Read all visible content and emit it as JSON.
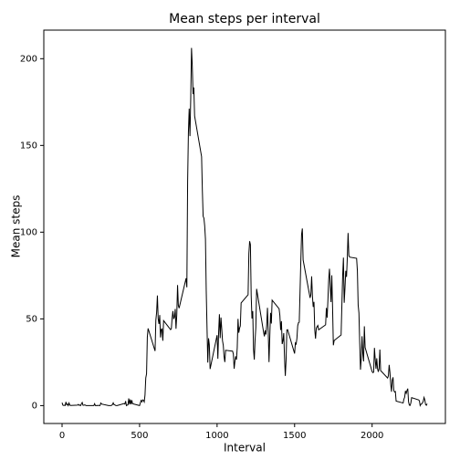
{
  "chart_data": {
    "type": "line",
    "title": "Mean steps per interval",
    "x_label": "Interval",
    "y_label": "Mean steps",
    "x": [
      0,
      5,
      10,
      15,
      20,
      25,
      30,
      35,
      40,
      45,
      50,
      55,
      100,
      105,
      110,
      115,
      120,
      125,
      130,
      135,
      140,
      145,
      150,
      155,
      200,
      205,
      210,
      215,
      220,
      225,
      230,
      235,
      240,
      245,
      250,
      255,
      300,
      305,
      310,
      315,
      320,
      325,
      330,
      335,
      340,
      345,
      350,
      355,
      400,
      405,
      410,
      415,
      420,
      425,
      430,
      435,
      440,
      445,
      450,
      455,
      500,
      505,
      510,
      515,
      520,
      525,
      530,
      535,
      540,
      545,
      550,
      555,
      600,
      605,
      610,
      615,
      620,
      625,
      630,
      635,
      640,
      645,
      650,
      655,
      700,
      705,
      710,
      715,
      720,
      725,
      730,
      735,
      740,
      745,
      750,
      755,
      800,
      805,
      810,
      815,
      820,
      825,
      830,
      835,
      840,
      845,
      850,
      855,
      900,
      905,
      910,
      915,
      920,
      925,
      930,
      935,
      940,
      945,
      950,
      955,
      1000,
      1005,
      1010,
      1015,
      1020,
      1025,
      1030,
      1035,
      1040,
      1045,
      1050,
      1055,
      1100,
      1105,
      1110,
      1115,
      1120,
      1125,
      1130,
      1135,
      1140,
      1145,
      1150,
      1155,
      1200,
      1205,
      1210,
      1215,
      1220,
      1225,
      1230,
      1235,
      1240,
      1245,
      1250,
      1255,
      1300,
      1305,
      1310,
      1315,
      1320,
      1325,
      1330,
      1335,
      1340,
      1345,
      1350,
      1355,
      1400,
      1405,
      1410,
      1415,
      1420,
      1425,
      1430,
      1435,
      1440,
      1445,
      1450,
      1455,
      1500,
      1505,
      1510,
      1515,
      1520,
      1525,
      1530,
      1535,
      1540,
      1545,
      1550,
      1555,
      1600,
      1605,
      1610,
      1615,
      1620,
      1625,
      1630,
      1635,
      1640,
      1645,
      1650,
      1655,
      1700,
      1705,
      1710,
      1715,
      1720,
      1725,
      1730,
      1735,
      1740,
      1745,
      1750,
      1755,
      1800,
      1805,
      1810,
      1815,
      1820,
      1825,
      1830,
      1835,
      1840,
      1845,
      1850,
      1855,
      1900,
      1905,
      1910,
      1915,
      1920,
      1925,
      1930,
      1935,
      1940,
      1945,
      1950,
      1955,
      2000,
      2005,
      2010,
      2015,
      2020,
      2025,
      2030,
      2035,
      2040,
      2045,
      2050,
      2055,
      2100,
      2105,
      2110,
      2115,
      2120,
      2125,
      2130,
      2135,
      2140,
      2145,
      2150,
      2155,
      2200,
      2205,
      2210,
      2215,
      2220,
      2225,
      2230,
      2235,
      2240,
      2245,
      2250,
      2255,
      2300,
      2305,
      2310,
      2315,
      2320,
      2325,
      2330,
      2335,
      2340,
      2345,
      2350,
      2355
    ],
    "series": [
      {
        "name": "Mean steps",
        "color": "#000000",
        "values": [
          1.7,
          0.3,
          0.1,
          0.2,
          0.1,
          2.1,
          0.5,
          0.9,
          0,
          1.5,
          0.3,
          0.1,
          0.3,
          0.7,
          0.2,
          0.3,
          0,
          1.1,
          1.8,
          0.2,
          0.2,
          0.4,
          0.3,
          0,
          0,
          0,
          1.1,
          0,
          0,
          0.1,
          0,
          0.2,
          0,
          0,
          1.5,
          0.9,
          0,
          0,
          0,
          0,
          0.2,
          0.6,
          1.6,
          0.6,
          0.5,
          0.1,
          0,
          0,
          1.2,
          0.9,
          2.6,
          0,
          0.3,
          0.4,
          4.1,
          0.7,
          3.5,
          0.8,
          3.1,
          1.1,
          0,
          1.6,
          3,
          2.2,
          3.3,
          3,
          2.1,
          6.1,
          16,
          18.3,
          39.5,
          44.5,
          31.5,
          49.3,
          53.8,
          63.5,
          50,
          47.1,
          52.2,
          39.3,
          44,
          44.2,
          37.4,
          49,
          43.8,
          44.4,
          50.5,
          54.5,
          49.9,
          51,
          55.7,
          44.3,
          52.3,
          69.5,
          57.8,
          56.2,
          73.4,
          68.2,
          129.4,
          157.5,
          171.2,
          155.4,
          177.3,
          206.2,
          195.9,
          179.6,
          183.4,
          167,
          143.5,
          124,
          109.1,
          108.1,
          103.7,
          96,
          66.2,
          45.2,
          24.8,
          38.8,
          35,
          21.1,
          40.6,
          27,
          42.4,
          52.7,
          38.9,
          50.8,
          44.3,
          37.4,
          34.7,
          28.3,
          25.1,
          31.9,
          31.4,
          29.7,
          21.3,
          25.5,
          28.4,
          26.5,
          33.4,
          50,
          42,
          44.6,
          46,
          59.2,
          63.9,
          87.7,
          94.8,
          92.8,
          63.4,
          50.2,
          54.5,
          32.4,
          26.5,
          37.7,
          45.1,
          67.3,
          42.3,
          39.9,
          43.3,
          41,
          46.2,
          56.4,
          42.8,
          25.1,
          40,
          53.5,
          47.3,
          60.8,
          55.8,
          52,
          43.6,
          48.7,
          35.5,
          37.5,
          41.8,
          27.5,
          17.1,
          26.1,
          43.6,
          43.8,
          30,
          36.1,
          35.5,
          38.8,
          46,
          47.8,
          48.1,
          65.3,
          82.9,
          98.7,
          102.1,
          84,
          62.1,
          64.1,
          74.5,
          63.2,
          56.9,
          59.8,
          43.9,
          38.6,
          44.7,
          45.5,
          46.2,
          43.7,
          46.6,
          56.3,
          50.7,
          61.2,
          72.7,
          78.9,
          68.9,
          59.7,
          75.1,
          56.5,
          34.8,
          37.5,
          40.7,
          58,
          74.7,
          85.3,
          59.3,
          67.8,
          77.7,
          74.2,
          85.3,
          99.5,
          86.6,
          85.6,
          84.9,
          77.8,
          58,
          53.4,
          36.3,
          20.7,
          27.4,
          40,
          30.2,
          25.5,
          45.7,
          33.5,
          19.6,
          19,
          19.3,
          33.3,
          26.8,
          21.2,
          27.3,
          21.3,
          19.5,
          21.3,
          32.3,
          20.2,
          15.9,
          17.2,
          23.5,
          19.2,
          12.5,
          8,
          14.7,
          16.3,
          8.7,
          7.8,
          8.1,
          2.6,
          1.5,
          3.7,
          4.8,
          8.5,
          7.1,
          8.7,
          9.8,
          2.2,
          0.3,
          0.1,
          1.6,
          4.6,
          3.3,
          2.8,
          0,
          0.8,
          1,
          1.6,
          2.6,
          4.7,
          3.3,
          0.6,
          0.2,
          1.1
        ]
      }
    ],
    "xlim": [
      -117.75,
      2472.75
    ],
    "ylim": [
      -10.31,
      216.48
    ],
    "xticks": [
      0,
      500,
      1000,
      1500,
      2000
    ],
    "yticks": [
      0,
      50,
      100,
      150,
      200
    ]
  }
}
